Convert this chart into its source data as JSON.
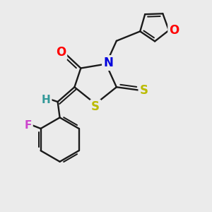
{
  "bg_color": "#ebebeb",
  "bond_color": "#1a1a1a",
  "bond_width": 1.7,
  "atom_colors": {
    "O": "#ff0000",
    "N": "#0000dd",
    "S": "#bbbb00",
    "F": "#cc44cc",
    "H": "#339999"
  },
  "font_size": 11,
  "fig_size": [
    3.0,
    3.0
  ],
  "dpi": 100,
  "xlim": [
    0,
    10
  ],
  "ylim": [
    0,
    10
  ]
}
